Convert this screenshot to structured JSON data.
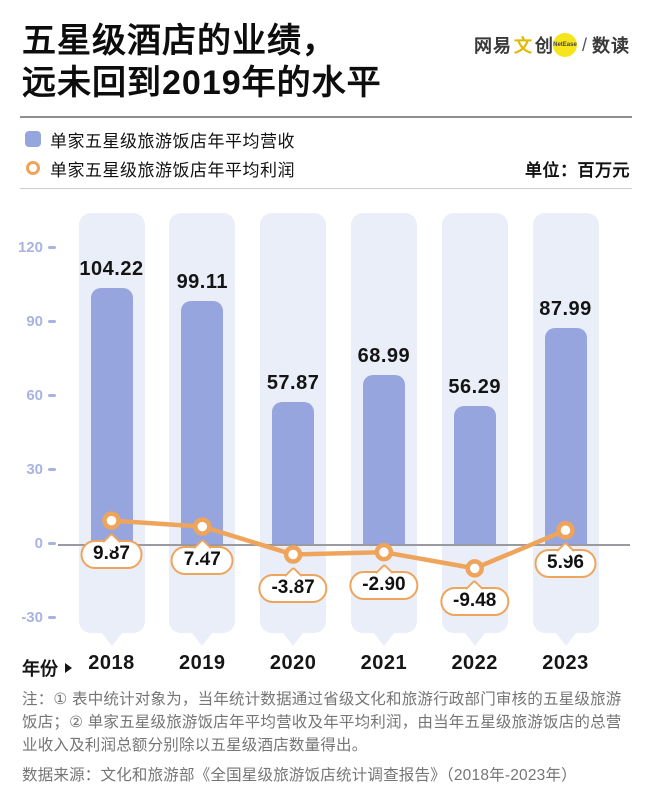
{
  "header": {
    "title_line1": "五星级酒店的业绩，",
    "title_line2": "远未回到2019年的水平",
    "logo": {
      "brand_part1": "网易",
      "brand_highlight": "文",
      "brand_part2": "创",
      "badge": "NetEase",
      "separator": "/",
      "product": "数读"
    }
  },
  "legend": {
    "items": [
      {
        "label": "单家五星级旅游饭店年平均营收",
        "marker": "square-icon",
        "color": "#96a5dd"
      },
      {
        "label": "单家五星级旅游饭店年平均利润",
        "marker": "ring-icon",
        "color": "#efa45c"
      }
    ],
    "unit_label": "单位：百万元"
  },
  "chart_data": {
    "type": "bar",
    "categories": [
      "2018",
      "2019",
      "2020",
      "2021",
      "2022",
      "2023"
    ],
    "series": [
      {
        "name": "单家五星级旅游饭店年平均营收",
        "type": "bar",
        "color": "#96a5dd",
        "values": [
          104.22,
          99.11,
          57.87,
          68.99,
          56.29,
          87.99
        ]
      },
      {
        "name": "单家五星级旅游饭店年平均利润",
        "type": "line",
        "color": "#efa45c",
        "values": [
          9.87,
          7.47,
          -3.87,
          -2.9,
          -9.48,
          5.96
        ]
      }
    ],
    "unit": "百万元",
    "y_ticks": [
      120,
      90,
      60,
      30,
      0,
      -30
    ],
    "ylim": [
      -30,
      135
    ],
    "x_axis_label": "年份",
    "grid": false,
    "legend_position": "top-left"
  },
  "footer": {
    "note": "注：① 表中统计对象为，当年统计数据通过省级文化和旅游行政部门审核的五星级旅游饭店；② 单家五星级旅游饭店年平均营收及年平均利润，由当年五星级旅游饭店的总营业收入及利润总额分别除以五星级酒店数量得出。",
    "source": "数据来源：文化和旅游部《全国星级旅游饭店统计调查报告》（2018年-2023年）"
  }
}
